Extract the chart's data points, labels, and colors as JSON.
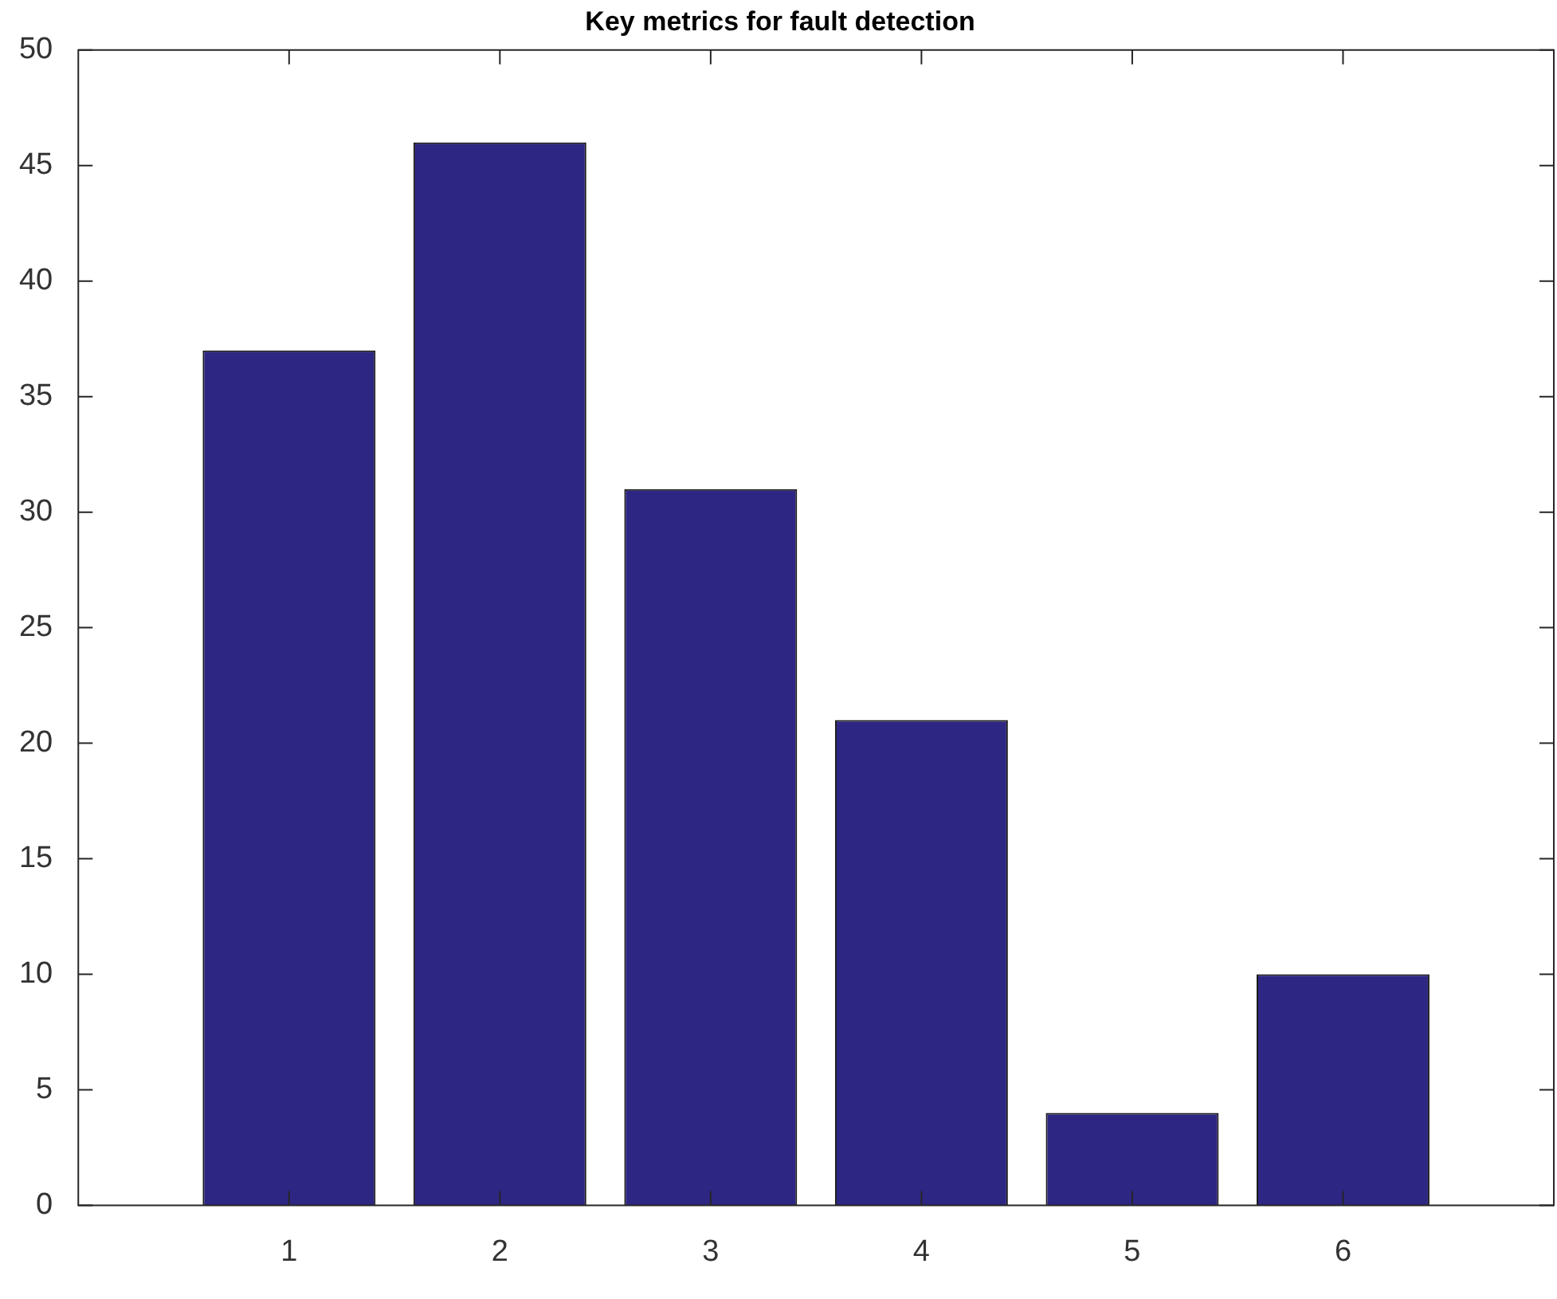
{
  "chart_data": {
    "type": "bar",
    "title": "Key metrics for fault detection",
    "x": [
      1,
      2,
      3,
      4,
      5,
      6
    ],
    "values": [
      37,
      46,
      31,
      21,
      4,
      10
    ],
    "color": "#2e2683",
    "xlim": [
      0,
      7
    ],
    "xticks": [
      1,
      2,
      3,
      4,
      5,
      6
    ],
    "ylim": [
      0,
      50
    ],
    "yticks": [
      0,
      5,
      10,
      15,
      20,
      25,
      30,
      35,
      40,
      45,
      50
    ],
    "grid": false,
    "legend": false
  }
}
